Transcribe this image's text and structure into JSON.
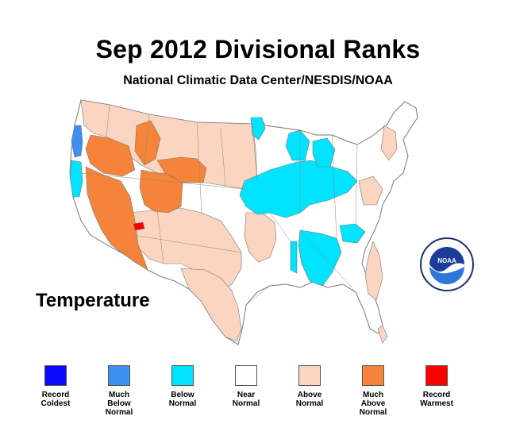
{
  "title": "Sep 2012 Divisional Ranks",
  "subtitle": "National Climatic Data Center/NESDIS/NOAA",
  "variable_label": "Temperature",
  "logo_text": "NOAA",
  "colors": {
    "record_coldest": "#0a0aff",
    "much_below_normal": "#3d8ff0",
    "below_normal": "#00e3ff",
    "near_normal": "#ffffff",
    "above_normal": "#fbd5c0",
    "much_above_normal": "#f5843a",
    "record_warmest": "#ff0000",
    "border": "#777777"
  },
  "legend": [
    {
      "label": "Record\nColdest",
      "color": "#0a0aff"
    },
    {
      "label": "Much\nBelow\nNormal",
      "color": "#3d8ff0"
    },
    {
      "label": "Below\nNormal",
      "color": "#00e3ff"
    },
    {
      "label": "Near\nNormal",
      "color": "#ffffff"
    },
    {
      "label": "Above\nNormal",
      "color": "#fbd5c0"
    },
    {
      "label": "Much\nAbove\nNormal",
      "color": "#f5843a"
    },
    {
      "label": "Record\nWarmest",
      "color": "#ff0000"
    }
  ]
}
